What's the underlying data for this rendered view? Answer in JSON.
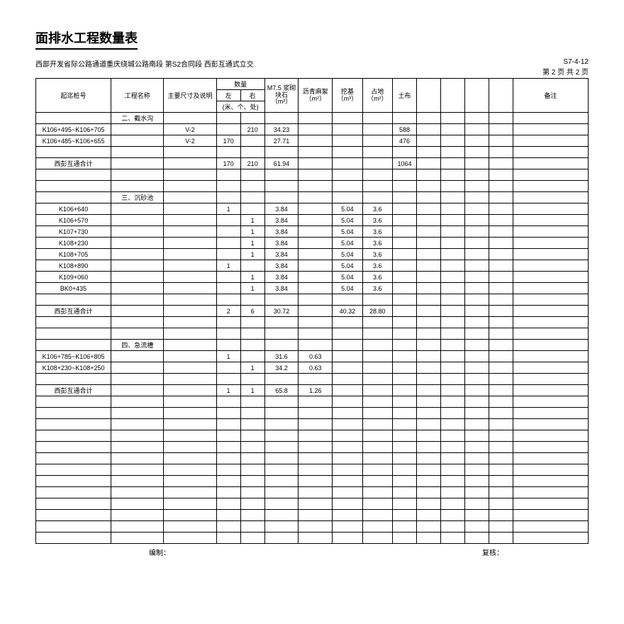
{
  "title": "面排水工程数量表",
  "project_line": "西部开发省际公路通道重庆绕城公路南段  第S2合同段  西彭互通式立交",
  "doc_code": "S7-4-12",
  "page_info": "第 2 页 共 2 页",
  "headers": {
    "h1": "起迄桩号",
    "h2": "工程名称",
    "h3": "主要尺寸及说明",
    "h4": "数量",
    "h4a": "左",
    "h4b": "右",
    "h4c": "(米、个、处)",
    "h5": "M7.5\n浆砌块石\n（m³）",
    "h6": "沥青麻絮\n（m²）",
    "h7": "挖基\n（m³）",
    "h8": "占地\n（m²）",
    "h9": "土布",
    "h10": "备注"
  },
  "sections": {
    "s1": "二、截水沟",
    "s2": "三、沉砂池",
    "s3": "四、急流槽"
  },
  "subtotal": "西彭互通合计",
  "footer_left": "编制：",
  "footer_right": "复核：",
  "rows": [
    {
      "c0": "K106+495~K106+705",
      "c2": "V-2",
      "c4": "210",
      "c5": "34.23",
      "c9": "588"
    },
    {
      "c0": "K106+485~K106+655",
      "c2": "V-2",
      "c3": "170",
      "c5": "27.71",
      "c9": "476"
    },
    {
      "blank": true
    },
    {
      "c0": "__subtotal",
      "c3": "170",
      "c4": "210",
      "c5": "61.94",
      "c9": "1064"
    },
    {
      "blank": true
    },
    {
      "blank": true
    },
    {
      "c1": "__s2"
    },
    {
      "c0": "K106+640",
      "c3": "1",
      "c5": "3.84",
      "c7": "5.04",
      "c8": "3.6"
    },
    {
      "c0": "K106+570",
      "c4": "1",
      "c5": "3.84",
      "c7": "5.04",
      "c8": "3.6"
    },
    {
      "c0": "K107+730",
      "c4": "1",
      "c5": "3.84",
      "c7": "5.04",
      "c8": "3.6"
    },
    {
      "c0": "K108+230",
      "c4": "1",
      "c5": "3.84",
      "c7": "5.04",
      "c8": "3.6"
    },
    {
      "c0": "K108+705",
      "c4": "1",
      "c5": "3.84",
      "c7": "5.04",
      "c8": "3.6"
    },
    {
      "c0": "K108+890",
      "c3": "1",
      "c5": "3.84",
      "c7": "5.04",
      "c8": "3.6"
    },
    {
      "c0": "K109+060",
      "c4": "1",
      "c5": "3.84",
      "c7": "5.04",
      "c8": "3.6"
    },
    {
      "c0": "BK0+435",
      "c4": "1",
      "c5": "3.84",
      "c7": "5.04",
      "c8": "3.6"
    },
    {
      "blank": true
    },
    {
      "c0": "__subtotal",
      "c3": "2",
      "c4": "6",
      "c5": "30.72",
      "c7": "40.32",
      "c8": "28.80"
    },
    {
      "blank": true
    },
    {
      "blank": true
    },
    {
      "c1": "__s3"
    },
    {
      "c0": "K106+785~K106+805",
      "c3": "1",
      "c5": "31.6",
      "c6": "0.63"
    },
    {
      "c0": "K108+230~K108+250",
      "c4": "1",
      "c5": "34.2",
      "c6": "0.63"
    },
    {
      "blank": true
    },
    {
      "c0": "__subtotal",
      "c3": "1",
      "c4": "1",
      "c5": "65.8",
      "c6": "1.26"
    },
    {
      "blank": true
    },
    {
      "blank": true
    },
    {
      "blank": true
    },
    {
      "blank": true
    },
    {
      "blank": true
    },
    {
      "blank": true
    },
    {
      "blank": true
    },
    {
      "blank": true
    },
    {
      "blank": true
    },
    {
      "blank": true
    },
    {
      "blank": true
    },
    {
      "blank": true
    },
    {
      "blank": true
    }
  ],
  "colwidths": [
    "100",
    "70",
    "70",
    "32",
    "32",
    "45",
    "45",
    "40",
    "40",
    "32",
    "32",
    "32",
    "32",
    "32",
    "100"
  ]
}
